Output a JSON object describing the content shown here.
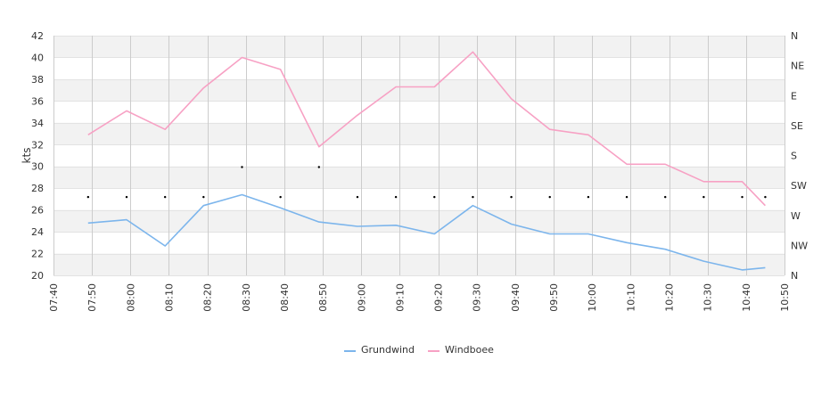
{
  "chart_data": {
    "type": "line",
    "ylabel": "kts",
    "ylim": [
      20,
      42
    ],
    "y_ticks": [
      "20",
      "22",
      "24",
      "26",
      "28",
      "30",
      "32",
      "34",
      "36",
      "38",
      "40",
      "42"
    ],
    "x_tick_labels": [
      "07:40",
      "07:50",
      "08:00",
      "08:10",
      "08:20",
      "08:30",
      "08:40",
      "08:50",
      "09:00",
      "09:10",
      "09:20",
      "09:30",
      "09:40",
      "09:50",
      "10:00",
      "10:10",
      "10:20",
      "10:30",
      "10:40",
      "10:50"
    ],
    "x_range": [
      "07:40",
      "10:50"
    ],
    "right_axis_labels": [
      "N",
      "NW",
      "W",
      "SW",
      "S",
      "SE",
      "E",
      "NE",
      "N"
    ],
    "grid": true,
    "legend_position": "bottom-center",
    "series": [
      {
        "name": "Grundwind",
        "color": "#7cb5ec",
        "x": [
          "07:49",
          "07:59",
          "08:09",
          "08:19",
          "08:29",
          "08:39",
          "08:49",
          "08:59",
          "09:09",
          "09:19",
          "09:29",
          "09:39",
          "09:49",
          "09:59",
          "10:09",
          "10:19",
          "10:29",
          "10:39",
          "10:45"
        ],
        "values": [
          24.8,
          25.1,
          22.7,
          26.4,
          27.4,
          26.2,
          24.9,
          24.5,
          24.6,
          23.8,
          26.4,
          24.7,
          23.8,
          23.8,
          23.0,
          22.4,
          21.3,
          20.5,
          20.7
        ]
      },
      {
        "name": "Windboee",
        "color": "#f7a1c4",
        "x": [
          "07:49",
          "07:59",
          "08:09",
          "08:19",
          "08:29",
          "08:39",
          "08:49",
          "08:59",
          "09:09",
          "09:19",
          "09:29",
          "09:39",
          "09:49",
          "09:59",
          "10:09",
          "10:19",
          "10:29",
          "10:39",
          "10:45"
        ],
        "values": [
          32.9,
          35.1,
          33.4,
          37.2,
          40.0,
          38.9,
          31.8,
          34.7,
          37.3,
          37.3,
          40.5,
          36.2,
          33.4,
          32.9,
          30.2,
          30.2,
          28.6,
          28.6,
          26.4
        ]
      }
    ],
    "direction_markers": {
      "x": [
        "07:49",
        "07:59",
        "08:09",
        "08:19",
        "08:29",
        "08:39",
        "08:49",
        "08:59",
        "09:09",
        "09:19",
        "09:29",
        "09:39",
        "09:49",
        "09:59",
        "10:09",
        "10:19",
        "10:29",
        "10:39",
        "10:45"
      ],
      "values": [
        "SW",
        "SW",
        "SW",
        "SW",
        "S",
        "SW",
        "S",
        "SW",
        "SW",
        "SW",
        "SW",
        "SW",
        "SW",
        "SW",
        "SW",
        "SW",
        "SW",
        "SW",
        "SW"
      ]
    }
  }
}
